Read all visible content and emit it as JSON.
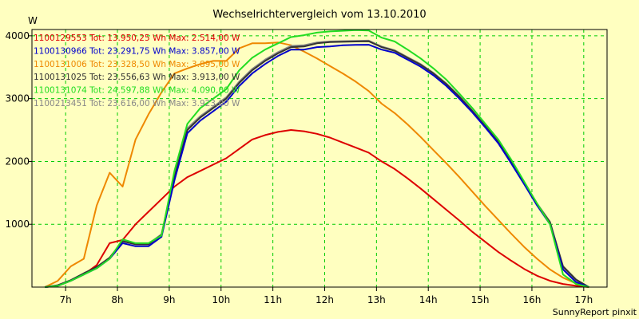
{
  "chart_data": {
    "type": "line",
    "title": "Wechselrichtervergleich vom 13.10.2010",
    "ylabel": "W",
    "xlabel": "",
    "footer": "SunnyReport pinxit",
    "xlim": [
      6.35,
      17.45
    ],
    "ylim": [
      0,
      4100
    ],
    "x_ticks": [
      7,
      8,
      9,
      10,
      11,
      12,
      13,
      14,
      15,
      16,
      17
    ],
    "x_tick_labels": [
      "7h",
      "8h",
      "9h",
      "10h",
      "11h",
      "12h",
      "13h",
      "14h",
      "15h",
      "16h",
      "17h"
    ],
    "y_ticks": [
      1000,
      2000,
      3000,
      4000
    ],
    "y_tick_labels": [
      "1000",
      "2000",
      "3000",
      "4000"
    ],
    "grid": true,
    "colors": {
      "background": "#ffffc0",
      "plot_background": "#ffffc0",
      "grid": "#00cc00",
      "axis": "#000000"
    },
    "series": [
      {
        "name": "1100129553",
        "legend": "1100129553 Tot: 13.950,25 Wh Max: 2.514,00 W",
        "color": "#dd0000",
        "x": [
          6.6,
          6.85,
          7.1,
          7.35,
          7.6,
          7.85,
          8.1,
          8.35,
          8.6,
          8.85,
          9.1,
          9.35,
          9.6,
          9.85,
          10.1,
          10.35,
          10.6,
          10.85,
          11.1,
          11.35,
          11.6,
          11.85,
          12.1,
          12.35,
          12.6,
          12.85,
          13.1,
          13.35,
          13.6,
          13.85,
          14.1,
          14.35,
          14.6,
          14.85,
          15.1,
          15.35,
          15.6,
          15.85,
          16.1,
          16.35,
          16.6,
          16.85,
          17.1
        ],
        "y": [
          0,
          20,
          100,
          200,
          350,
          700,
          750,
          1000,
          1200,
          1400,
          1600,
          1750,
          1850,
          1950,
          2050,
          2200,
          2350,
          2420,
          2470,
          2500,
          2480,
          2440,
          2380,
          2300,
          2220,
          2140,
          2000,
          1880,
          1730,
          1570,
          1400,
          1230,
          1060,
          880,
          720,
          560,
          420,
          290,
          180,
          100,
          50,
          20,
          0
        ]
      },
      {
        "name": "1100130966",
        "legend": "1100130966 Tot: 23.291,75 Wh Max: 3.857,00 W",
        "color": "#0000cc",
        "x": [
          6.6,
          6.85,
          7.1,
          7.35,
          7.6,
          7.85,
          8.1,
          8.35,
          8.6,
          8.85,
          9.1,
          9.35,
          9.6,
          9.85,
          10.1,
          10.35,
          10.6,
          10.85,
          11.1,
          11.35,
          11.6,
          11.85,
          12.1,
          12.35,
          12.6,
          12.85,
          13.1,
          13.35,
          13.6,
          13.85,
          14.1,
          14.35,
          14.6,
          14.85,
          15.1,
          15.35,
          15.6,
          15.85,
          16.1,
          16.35,
          16.6,
          16.85,
          17.1
        ],
        "y": [
          0,
          20,
          100,
          200,
          300,
          450,
          700,
          650,
          650,
          800,
          1700,
          2450,
          2650,
          2800,
          2950,
          3200,
          3400,
          3550,
          3680,
          3780,
          3780,
          3820,
          3830,
          3850,
          3855,
          3857,
          3780,
          3730,
          3620,
          3510,
          3370,
          3200,
          3000,
          2780,
          2540,
          2290,
          1970,
          1640,
          1300,
          1000,
          280,
          80,
          0
        ]
      },
      {
        "name": "1100131006",
        "legend": "1100131006 Tot: 23.328,50 Wh Max: 3.895,00 W",
        "color": "#ee8800",
        "x": [
          6.6,
          6.85,
          7.1,
          7.35,
          7.6,
          7.85,
          8.1,
          8.35,
          8.6,
          8.85,
          9.1,
          9.35,
          9.6,
          9.85,
          10.1,
          10.35,
          10.6,
          10.85,
          11.1,
          11.35,
          11.6,
          11.85,
          12.1,
          12.35,
          12.6,
          12.85,
          13.1,
          13.35,
          13.6,
          13.85,
          14.1,
          14.35,
          14.6,
          14.85,
          15.1,
          15.35,
          15.6,
          15.85,
          16.1,
          16.35,
          16.6,
          16.85,
          17.1
        ],
        "y": [
          0,
          100,
          330,
          450,
          1300,
          1820,
          1600,
          2350,
          2750,
          3100,
          3400,
          3480,
          3550,
          3600,
          3600,
          3800,
          3880,
          3880,
          3895,
          3850,
          3750,
          3640,
          3520,
          3400,
          3270,
          3120,
          2920,
          2770,
          2590,
          2390,
          2180,
          1970,
          1750,
          1520,
          1290,
          1070,
          850,
          640,
          450,
          280,
          150,
          60,
          0
        ]
      },
      {
        "name": "1100131025",
        "legend": "1100131025 Tot: 23.556,63 Wh Max: 3.913,00 W",
        "color": "#333333",
        "x": [
          6.6,
          6.85,
          7.1,
          7.35,
          7.6,
          7.85,
          8.1,
          8.35,
          8.6,
          8.85,
          9.1,
          9.35,
          9.6,
          9.85,
          10.1,
          10.35,
          10.6,
          10.85,
          11.1,
          11.35,
          11.6,
          11.85,
          12.1,
          12.35,
          12.6,
          12.85,
          13.1,
          13.35,
          13.6,
          13.85,
          14.1,
          14.35,
          14.6,
          14.85,
          15.1,
          15.35,
          15.6,
          15.85,
          16.1,
          16.35,
          16.6,
          16.85,
          17.1
        ],
        "y": [
          0,
          30,
          110,
          220,
          320,
          470,
          730,
          680,
          680,
          830,
          1750,
          2500,
          2700,
          2850,
          3000,
          3250,
          3450,
          3600,
          3720,
          3820,
          3830,
          3880,
          3900,
          3905,
          3910,
          3913,
          3820,
          3760,
          3650,
          3540,
          3400,
          3230,
          3030,
          2800,
          2560,
          2310,
          1990,
          1660,
          1320,
          1030,
          330,
          120,
          0
        ]
      },
      {
        "name": "1100131074",
        "legend": "1100131074 Tot: 24.597,88 Wh Max: 4.090,00 W",
        "color": "#22dd22",
        "x": [
          6.6,
          6.85,
          7.1,
          7.35,
          7.6,
          7.85,
          8.1,
          8.35,
          8.6,
          8.85,
          9.1,
          9.35,
          9.6,
          9.85,
          10.1,
          10.35,
          10.6,
          10.85,
          11.1,
          11.35,
          11.6,
          11.85,
          12.1,
          12.35,
          12.6,
          12.85,
          13.1,
          13.35,
          13.6,
          13.85,
          14.1,
          14.35,
          14.6,
          14.85,
          15.1,
          15.35,
          15.6,
          15.85,
          16.1,
          16.35,
          16.6,
          16.85,
          17.1
        ],
        "y": [
          0,
          20,
          100,
          200,
          300,
          450,
          760,
          700,
          700,
          820,
          1850,
          2600,
          2850,
          3000,
          3150,
          3450,
          3650,
          3780,
          3880,
          3980,
          4010,
          4050,
          4070,
          4080,
          4090,
          4085,
          3970,
          3910,
          3780,
          3640,
          3480,
          3300,
          3080,
          2850,
          2600,
          2350,
          2030,
          1680,
          1330,
          1000,
          200,
          50,
          0
        ]
      },
      {
        "name": "1100213451",
        "legend": "1100213451 Tot: 23.616,00 Wh Max: 3.923,00 W",
        "color": "#888888",
        "x": [
          6.6,
          6.85,
          7.1,
          7.35,
          7.6,
          7.85,
          8.1,
          8.35,
          8.6,
          8.85,
          9.1,
          9.35,
          9.6,
          9.85,
          10.1,
          10.35,
          10.6,
          10.85,
          11.1,
          11.35,
          11.6,
          11.85,
          12.1,
          12.35,
          12.6,
          12.85,
          13.1,
          13.35,
          13.6,
          13.85,
          14.1,
          14.35,
          14.6,
          14.85,
          15.1,
          15.35,
          15.6,
          15.85,
          16.1,
          16.35,
          16.6,
          16.85,
          17.1
        ],
        "y": [
          0,
          25,
          105,
          210,
          310,
          460,
          740,
          690,
          690,
          840,
          1780,
          2530,
          2720,
          2870,
          3020,
          3270,
          3470,
          3620,
          3740,
          3840,
          3850,
          3895,
          3910,
          3915,
          3920,
          3923,
          3830,
          3770,
          3660,
          3550,
          3410,
          3240,
          3040,
          2810,
          2570,
          2320,
          2000,
          1670,
          1330,
          1040,
          320,
          110,
          0
        ]
      }
    ]
  }
}
